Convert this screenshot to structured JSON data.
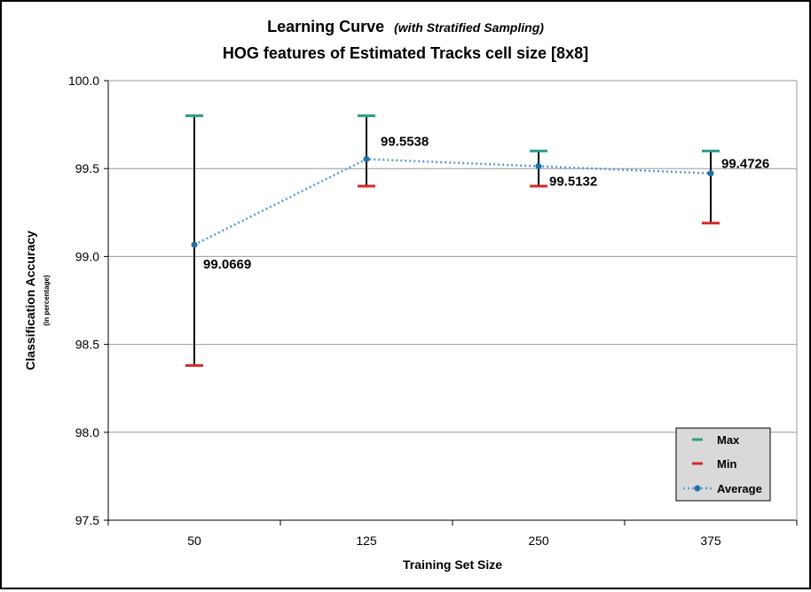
{
  "chart_data": {
    "type": "line",
    "title": "Learning Curve",
    "title_note": "(with Stratified Sampling)",
    "subtitle": "HOG features of Estimated Tracks cell size [8x8]",
    "xlabel": "Training Set Size",
    "ylabel": "Classification Accuracy",
    "ylabel_note": "(in percentage)",
    "categories": [
      "50",
      "125",
      "250",
      "375"
    ],
    "ylim": [
      97.5,
      100.0
    ],
    "yticks": [
      97.5,
      98.0,
      98.5,
      99.0,
      99.5,
      100.0
    ],
    "ytick_labels": [
      "97.5",
      "98.0",
      "98.5",
      "99.0",
      "99.5",
      "100.0"
    ],
    "grid": true,
    "legend_position": "bottom-right",
    "series": [
      {
        "name": "Max",
        "values": [
          99.8,
          99.8,
          99.6,
          99.6
        ],
        "color": "#2a9d8f",
        "style": "dash-marker"
      },
      {
        "name": "Min",
        "values": [
          98.38,
          99.4,
          99.4,
          99.19
        ],
        "color": "#d62828",
        "style": "dash-marker"
      },
      {
        "name": "Average",
        "values": [
          99.0669,
          99.5538,
          99.5132,
          99.4726
        ],
        "color": "#1f6fa8",
        "line_color": "#5b9bd5",
        "style": "dotted-line"
      }
    ],
    "data_labels": [
      "99.0669",
      "99.5538",
      "99.5132",
      "99.4726"
    ]
  }
}
